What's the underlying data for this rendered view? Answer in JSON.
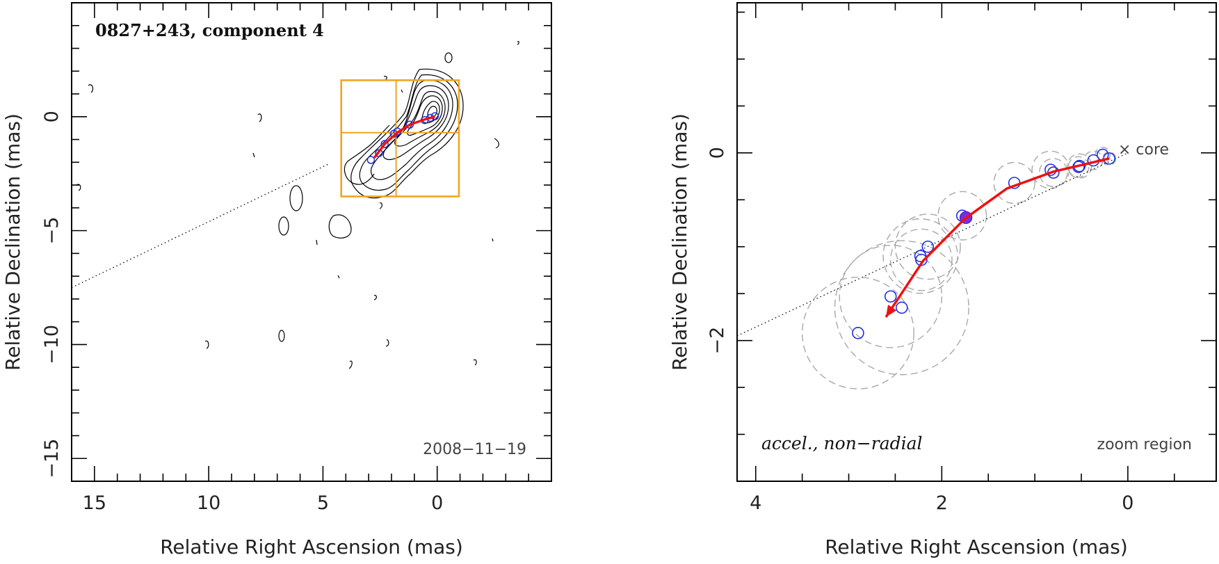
{
  "chart_data": [
    {
      "type": "scatter",
      "panel": "left",
      "title": "0827+243, component 4",
      "date_label": "2008−11−19",
      "xlabel": "Relative Right Ascension (mas)",
      "ylabel": "Relative Declination (mas)",
      "xlim": [
        16,
        -5
      ],
      "ylim": [
        -16,
        5
      ],
      "x_ticks": [
        15,
        10,
        5,
        0
      ],
      "x_tick_labels": [
        "15",
        "10",
        "5",
        "0"
      ],
      "y_ticks": [
        0,
        -5,
        -10,
        -15
      ],
      "y_tick_labels": [
        "0",
        "−5",
        "−10",
        "−15"
      ],
      "zoom_box": {
        "x0": 4.2,
        "x1": -0.95,
        "y0": -3.5,
        "y1": 1.6
      },
      "zoom_grid_x": 1.8,
      "zoom_grid_y": -0.7,
      "jet_axis": [
        [
          16,
          -7.5
        ],
        [
          4.7,
          -2.05
        ]
      ],
      "components": [
        [
          2.9,
          -1.9
        ],
        [
          2.55,
          -1.6
        ],
        [
          2.3,
          -1.2
        ],
        [
          1.9,
          -0.75
        ],
        [
          1.75,
          -0.65
        ],
        [
          1.2,
          -0.35
        ],
        [
          0.55,
          -0.15
        ],
        [
          0.3,
          -0.05
        ],
        [
          0.1,
          0.02
        ]
      ],
      "trajectory": [
        [
          2.75,
          -1.8
        ],
        [
          2.3,
          -1.2
        ],
        [
          1.75,
          -0.7
        ],
        [
          1.2,
          -0.35
        ],
        [
          0.55,
          -0.12
        ],
        [
          0.1,
          0.0
        ]
      ]
    },
    {
      "type": "scatter",
      "panel": "right",
      "xlabel": "Relative Right Ascension (mas)",
      "ylabel": "Relative Declination (mas)",
      "xlim": [
        4.2,
        -0.95
      ],
      "ylim": [
        -3.5,
        1.6
      ],
      "x_ticks": [
        4,
        2,
        0
      ],
      "x_tick_labels": [
        "4",
        "2",
        "0"
      ],
      "y_ticks": [
        0,
        -2
      ],
      "y_tick_labels": [
        "0",
        "−2"
      ],
      "annotation_left": "accel., non−radial",
      "annotation_right": "zoom region",
      "core_label": "× core",
      "core": [
        0,
        0
      ],
      "components": [
        {
          "x": 2.9,
          "y": -1.92,
          "r": 0.6
        },
        {
          "x": 2.55,
          "y": -1.53,
          "r": 0.55
        },
        {
          "x": 2.43,
          "y": -1.65,
          "r": 0.72
        },
        {
          "x": 2.23,
          "y": -1.1,
          "r": 0.4
        },
        {
          "x": 2.22,
          "y": -1.14,
          "r": 0.33
        },
        {
          "x": 2.15,
          "y": -1.0,
          "r": 0.35
        },
        {
          "x": 1.78,
          "y": -0.67,
          "r": 0.26
        },
        {
          "x": 1.22,
          "y": -0.32,
          "r": 0.22
        },
        {
          "x": 0.83,
          "y": -0.18,
          "r": 0.2
        },
        {
          "x": 0.8,
          "y": -0.21,
          "r": 0.15
        },
        {
          "x": 0.52,
          "y": -0.14,
          "r": 0.13
        },
        {
          "x": 0.53,
          "y": -0.15,
          "r": 0.11
        },
        {
          "x": 0.37,
          "y": -0.08,
          "r": 0.1
        },
        {
          "x": 0.27,
          "y": -0.02,
          "r": 0.08
        },
        {
          "x": 0.2,
          "y": -0.06,
          "r": 0.07
        }
      ],
      "highlight": {
        "x": 1.74,
        "y": -0.69
      },
      "trajectory": [
        [
          0.2,
          -0.06
        ],
        [
          0.8,
          -0.2
        ],
        [
          1.3,
          -0.38
        ],
        [
          1.75,
          -0.7
        ],
        [
          2.2,
          -1.15
        ],
        [
          2.6,
          -1.75
        ]
      ],
      "jet_axis": [
        [
          4.2,
          -1.95
        ],
        [
          0.0,
          0.0
        ]
      ]
    }
  ]
}
